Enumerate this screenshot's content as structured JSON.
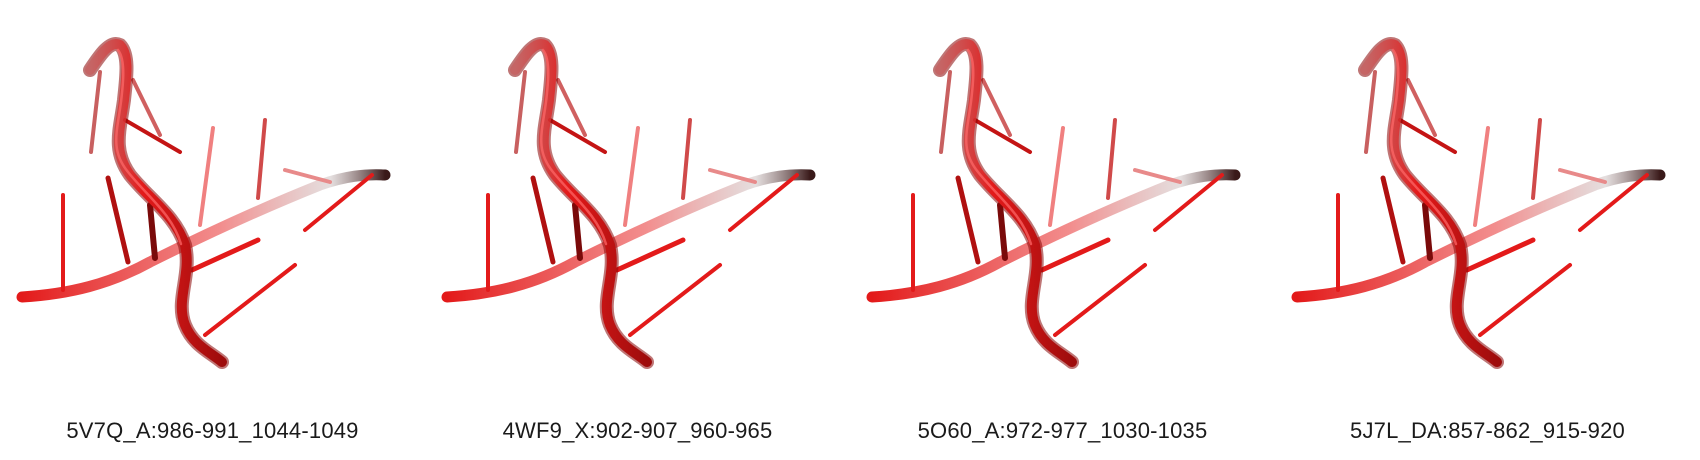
{
  "structure_color": "#e31a1a",
  "panels": [
    {
      "id": "p1",
      "label": "5V7Q_A:986-991_1044-1049"
    },
    {
      "id": "p2",
      "label": "4WF9_X:902-907_960-965"
    },
    {
      "id": "p3",
      "label": "5O60_A:972-977_1030-1035"
    },
    {
      "id": "p4",
      "label": "5J7L_DA:857-862_915-920"
    }
  ]
}
